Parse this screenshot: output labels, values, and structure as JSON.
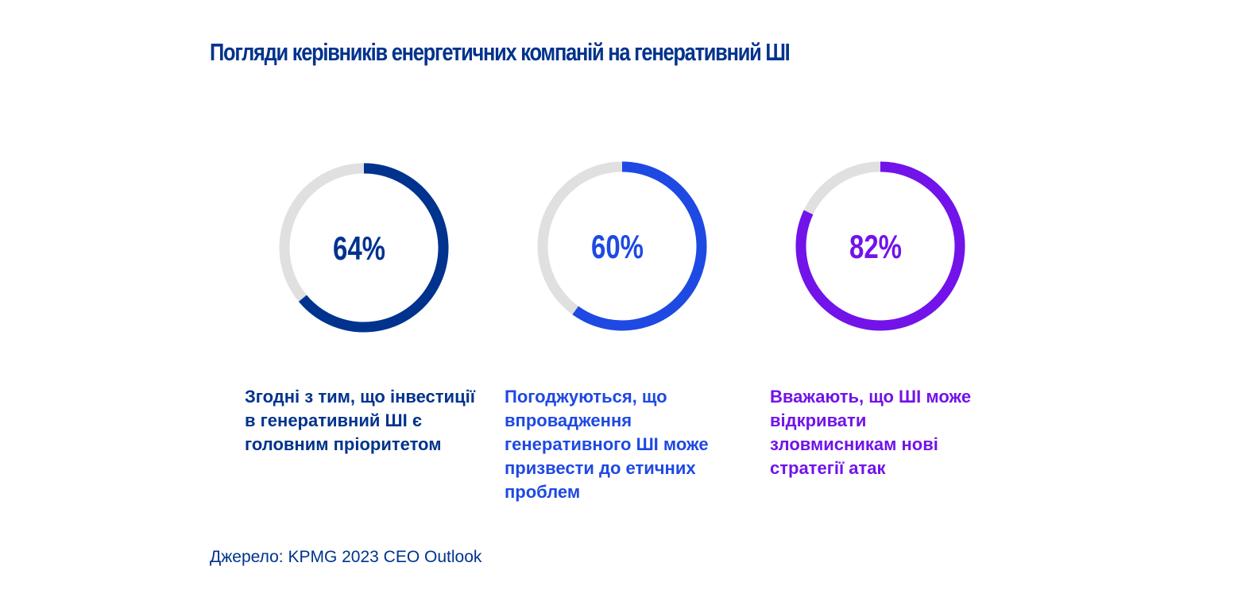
{
  "title": "Погляди керівників енергетичних компаній на генеративний ШІ",
  "chart_data": [
    {
      "type": "pie",
      "value": 64,
      "label": "64%",
      "caption": "Згодні з тим, що інвестиції в генеративний ШІ є головним пріоритетом",
      "color": "#00338d",
      "track_color": "#e0e0e0"
    },
    {
      "type": "pie",
      "value": 60,
      "label": "60%",
      "caption": "Погоджуються, що впровадження генеративного ШІ може призвести до етичних проблем",
      "color": "#1e49e2",
      "track_color": "#e0e0e0"
    },
    {
      "type": "pie",
      "value": 82,
      "label": "82%",
      "caption": "Вважають, що ШІ може відкривати зловмисникам нові стратегії атак",
      "color": "#7213ea",
      "track_color": "#e0e0e0"
    }
  ],
  "source": "Джерело: KPMG 2023 CEO Outlook"
}
